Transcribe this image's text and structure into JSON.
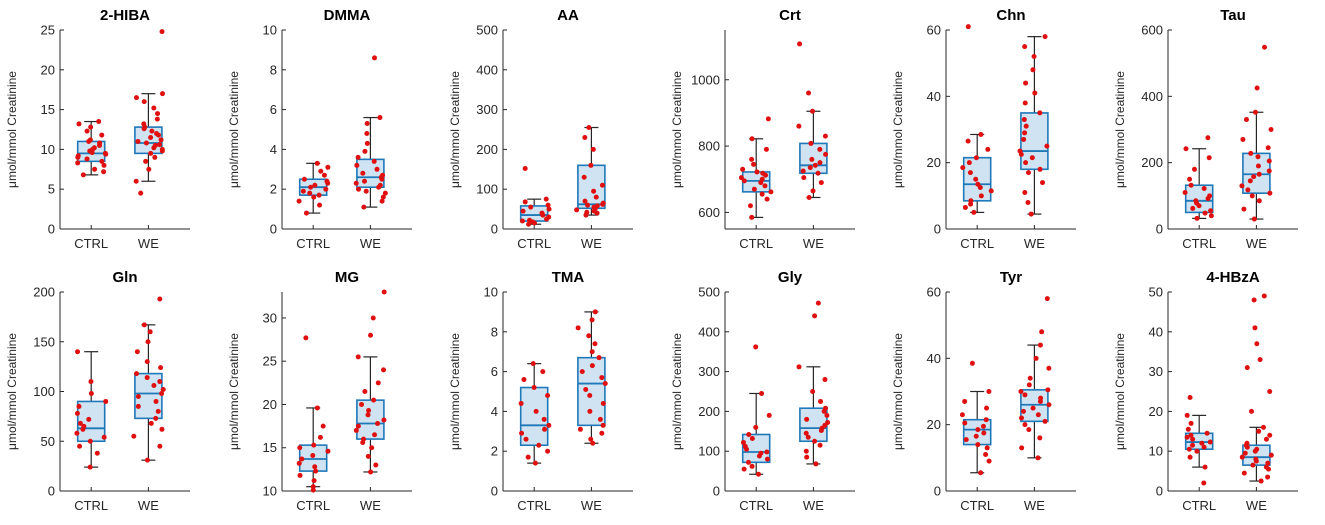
{
  "figure": {
    "ylabel": "μmol/mmol Creatinine",
    "groups": [
      "CTRL",
      "WE"
    ],
    "colors": {
      "box_fill": "#cfe3f3",
      "box_edge": "#1f78b8",
      "whisker": "#262626",
      "point": "#e01010",
      "axis": "#262626"
    }
  },
  "chart_data": [
    {
      "type": "box",
      "title": "2-HIBA",
      "ylabel": "μmol/mmol Creatinine",
      "categories": [
        "CTRL",
        "WE"
      ],
      "ylim": [
        0,
        25
      ],
      "yticks": [
        0,
        5,
        10,
        15,
        20,
        25
      ],
      "boxes": [
        {
          "min": 6.8,
          "q1": 8.5,
          "median": 9.5,
          "q3": 11.0,
          "max": 13.5
        },
        {
          "min": 6.0,
          "q1": 9.5,
          "median": 10.8,
          "q3": 12.8,
          "max": 17.0
        }
      ],
      "points": [
        [
          6.8,
          7.2,
          7.5,
          8.0,
          8.3,
          8.5,
          8.8,
          9.0,
          9.2,
          9.4,
          9.5,
          9.6,
          9.8,
          10.0,
          10.2,
          10.5,
          10.8,
          11.0,
          11.2,
          11.8,
          12.3,
          12.8,
          13.2,
          13.5
        ],
        [
          4.5,
          6.0,
          7.5,
          8.5,
          9.0,
          9.5,
          9.8,
          10.0,
          10.2,
          10.5,
          10.6,
          10.8,
          11.0,
          11.2,
          11.5,
          11.8,
          12.0,
          12.3,
          12.6,
          12.8,
          13.2,
          13.8,
          14.5,
          15.2,
          16.0,
          16.5,
          17.0,
          24.8
        ]
      ]
    },
    {
      "type": "box",
      "title": "DMMA",
      "ylabel": "μmol/mmol Creatinine",
      "categories": [
        "CTRL",
        "WE"
      ],
      "ylim": [
        0,
        10
      ],
      "yticks": [
        0,
        2,
        4,
        6,
        8,
        10
      ],
      "boxes": [
        {
          "min": 0.8,
          "q1": 1.7,
          "median": 2.1,
          "q3": 2.5,
          "max": 3.3
        },
        {
          "min": 1.1,
          "q1": 2.1,
          "median": 2.6,
          "q3": 3.5,
          "max": 5.6
        }
      ],
      "points": [
        [
          0.8,
          1.2,
          1.4,
          1.6,
          1.7,
          1.8,
          1.9,
          2.0,
          2.1,
          2.2,
          2.3,
          2.4,
          2.5,
          2.7,
          2.9,
          3.1,
          3.3
        ],
        [
          1.1,
          1.4,
          1.6,
          1.8,
          1.9,
          2.0,
          2.1,
          2.2,
          2.3,
          2.4,
          2.5,
          2.6,
          2.7,
          2.8,
          3.0,
          3.2,
          3.4,
          3.6,
          3.9,
          4.3,
          4.8,
          5.3,
          5.6,
          8.6
        ]
      ]
    },
    {
      "type": "box",
      "title": "AA",
      "ylabel": "μmol/mmol Creatinine",
      "categories": [
        "CTRL",
        "WE"
      ],
      "ylim": [
        0,
        500
      ],
      "yticks": [
        0,
        100,
        200,
        300,
        400,
        500
      ],
      "boxes": [
        {
          "min": 12,
          "q1": 20,
          "median": 35,
          "q3": 58,
          "max": 75
        },
        {
          "min": 35,
          "q1": 52,
          "median": 62,
          "q3": 160,
          "max": 255
        }
      ],
      "points": [
        [
          12,
          15,
          18,
          20,
          22,
          25,
          30,
          35,
          40,
          45,
          50,
          55,
          60,
          68,
          75,
          152
        ],
        [
          35,
          40,
          42,
          45,
          48,
          52,
          55,
          58,
          60,
          62,
          65,
          70,
          80,
          95,
          110,
          130,
          160,
          200,
          230,
          255
        ]
      ]
    },
    {
      "type": "box",
      "title": "Crt",
      "ylabel": "μmol/mmol Creatinine",
      "categories": [
        "CTRL",
        "WE"
      ],
      "ylim": [
        550,
        1150
      ],
      "yticks": [
        600,
        800,
        1000
      ],
      "boxes": [
        {
          "min": 585,
          "q1": 662,
          "median": 695,
          "q3": 722,
          "max": 822
        },
        {
          "min": 645,
          "q1": 718,
          "median": 742,
          "q3": 808,
          "max": 905
        }
      ],
      "points": [
        [
          585,
          620,
          640,
          655,
          662,
          670,
          680,
          690,
          695,
          700,
          705,
          712,
          718,
          722,
          730,
          745,
          760,
          790,
          822,
          882
        ],
        [
          645,
          665,
          690,
          705,
          718,
          725,
          735,
          742,
          750,
          760,
          775,
          790,
          808,
          830,
          860,
          905,
          960,
          1108
        ]
      ]
    },
    {
      "type": "box",
      "title": "Chn",
      "ylabel": "μmol/mmol Creatinine",
      "categories": [
        "CTRL",
        "WE"
      ],
      "ylim": [
        0,
        60
      ],
      "yticks": [
        0,
        20,
        40,
        60
      ],
      "boxes": [
        {
          "min": 5,
          "q1": 8.5,
          "median": 13.5,
          "q3": 21.5,
          "max": 28.5
        },
        {
          "min": 4.5,
          "q1": 18,
          "median": 23.5,
          "q3": 35,
          "max": 58
        }
      ],
      "points": [
        [
          5,
          6.5,
          7.5,
          8.5,
          10,
          11.5,
          12.5,
          13.5,
          15,
          17,
          18.5,
          20,
          21.5,
          24,
          26.5,
          28.5,
          61
        ],
        [
          4.5,
          8,
          11,
          14,
          17,
          18,
          20,
          21.5,
          22.5,
          23.5,
          25,
          27,
          29,
          31,
          33,
          35,
          38,
          41,
          44,
          48,
          52,
          55,
          58
        ]
      ]
    },
    {
      "type": "box",
      "title": "Tau",
      "ylabel": "μmol/mmol Creatinine",
      "categories": [
        "CTRL",
        "WE"
      ],
      "ylim": [
        0,
        600
      ],
      "yticks": [
        0,
        200,
        400,
        600
      ],
      "boxes": [
        {
          "min": 32,
          "q1": 50,
          "median": 85,
          "q3": 132,
          "max": 242
        },
        {
          "min": 30,
          "q1": 108,
          "median": 165,
          "q3": 228,
          "max": 352
        }
      ],
      "points": [
        [
          32,
          40,
          48,
          55,
          62,
          70,
          78,
          85,
          92,
          100,
          110,
          122,
          132,
          150,
          180,
          215,
          242,
          275
        ],
        [
          30,
          60,
          85,
          100,
          108,
          118,
          130,
          145,
          158,
          165,
          175,
          190,
          205,
          218,
          228,
          245,
          270,
          300,
          330,
          352,
          425,
          548
        ]
      ]
    },
    {
      "type": "box",
      "title": "Gln",
      "ylabel": "μmol/mmol Creatinine",
      "categories": [
        "CTRL",
        "WE"
      ],
      "ylim": [
        0,
        200
      ],
      "yticks": [
        0,
        50,
        100,
        150,
        200
      ],
      "boxes": [
        {
          "min": 24,
          "q1": 50,
          "median": 63,
          "q3": 90,
          "max": 140
        },
        {
          "min": 31,
          "q1": 73,
          "median": 98,
          "q3": 118,
          "max": 167
        }
      ],
      "points": [
        [
          24,
          38,
          45,
          50,
          54,
          58,
          62,
          65,
          68,
          72,
          78,
          85,
          90,
          98,
          110,
          140
        ],
        [
          31,
          45,
          55,
          62,
          68,
          73,
          80,
          85,
          90,
          95,
          98,
          102,
          106,
          110,
          114,
          118,
          124,
          130,
          140,
          150,
          160,
          167,
          193
        ]
      ]
    },
    {
      "type": "box",
      "title": "MG",
      "ylabel": "μmol/mmol Creatinine",
      "categories": [
        "CTRL",
        "WE"
      ],
      "ylim": [
        10,
        33
      ],
      "yticks": [
        10,
        15,
        20,
        25,
        30
      ],
      "boxes": [
        {
          "min": 10.5,
          "q1": 12.3,
          "median": 13.7,
          "q3": 15.3,
          "max": 19.6
        },
        {
          "min": 12.2,
          "q1": 16,
          "median": 17.8,
          "q3": 20.5,
          "max": 25.5
        }
      ],
      "points": [
        [
          10.1,
          10.5,
          11.2,
          11.8,
          12.3,
          12.8,
          13.2,
          13.7,
          14.1,
          14.6,
          15,
          15.3,
          16.2,
          17.5,
          19.6,
          27.7
        ],
        [
          12.2,
          13,
          14,
          15,
          15.6,
          16,
          16.5,
          17,
          17.5,
          17.8,
          18.2,
          18.8,
          19.3,
          20,
          20.5,
          21.5,
          22.5,
          24,
          25.5,
          28,
          30,
          33
        ]
      ]
    },
    {
      "type": "box",
      "title": "TMA",
      "ylabel": "μmol/mmol Creatinine",
      "categories": [
        "CTRL",
        "WE"
      ],
      "ylim": [
        0,
        10
      ],
      "yticks": [
        0,
        2,
        4,
        6,
        8,
        10
      ],
      "boxes": [
        {
          "min": 1.4,
          "q1": 2.3,
          "median": 3.3,
          "q3": 5.2,
          "max": 6.4
        },
        {
          "min": 2.4,
          "q1": 3.3,
          "median": 5.4,
          "q3": 6.7,
          "max": 9.0
        }
      ],
      "points": [
        [
          1.4,
          1.7,
          2.0,
          2.3,
          2.6,
          2.9,
          3.1,
          3.3,
          3.6,
          4.0,
          4.4,
          4.8,
          5.2,
          5.6,
          6.0,
          6.4
        ],
        [
          2.4,
          2.6,
          2.9,
          3.1,
          3.3,
          3.6,
          4.0,
          4.4,
          4.8,
          5.1,
          5.4,
          5.7,
          6.0,
          6.3,
          6.7,
          7.0,
          7.4,
          7.8,
          8.2,
          8.6,
          9.0
        ]
      ]
    },
    {
      "type": "box",
      "title": "Gly",
      "ylabel": "μmol/mmol Creatinine",
      "categories": [
        "CTRL",
        "WE"
      ],
      "ylim": [
        0,
        500
      ],
      "yticks": [
        0,
        100,
        200,
        300,
        400,
        500
      ],
      "boxes": [
        {
          "min": 42,
          "q1": 72,
          "median": 98,
          "q3": 142,
          "max": 245
        },
        {
          "min": 68,
          "q1": 125,
          "median": 158,
          "q3": 208,
          "max": 312
        }
      ],
      "points": [
        [
          42,
          55,
          62,
          72,
          80,
          88,
          95,
          98,
          105,
          112,
          122,
          132,
          142,
          160,
          190,
          245,
          362
        ],
        [
          68,
          85,
          100,
          115,
          125,
          135,
          145,
          152,
          158,
          165,
          172,
          180,
          190,
          200,
          208,
          225,
          250,
          280,
          312,
          440,
          472
        ]
      ]
    },
    {
      "type": "box",
      "title": "Tyr",
      "ylabel": "μmol/mmol Creatinine",
      "categories": [
        "CTRL",
        "WE"
      ],
      "ylim": [
        0,
        60
      ],
      "yticks": [
        0,
        20,
        40,
        60
      ],
      "boxes": [
        {
          "min": 5.5,
          "q1": 14,
          "median": 18.5,
          "q3": 21.5,
          "max": 30
        },
        {
          "min": 10,
          "q1": 21,
          "median": 26,
          "q3": 30.5,
          "max": 44
        }
      ],
      "points": [
        [
          5.5,
          9,
          11,
          13,
          14,
          15.5,
          16.5,
          17.5,
          18.5,
          19.5,
          20.5,
          21.5,
          23,
          25,
          27,
          30,
          38.5
        ],
        [
          10,
          13,
          16,
          18.5,
          20,
          21,
          22,
          23,
          24,
          25,
          26,
          27,
          28,
          29,
          30,
          30.5,
          32,
          34,
          37,
          40,
          44,
          48,
          58
        ]
      ]
    },
    {
      "type": "box",
      "title": "4-HBzA",
      "ylabel": "μmol/mmol Creatinine",
      "categories": [
        "CTRL",
        "WE"
      ],
      "ylim": [
        0,
        50
      ],
      "yticks": [
        0,
        10,
        20,
        30,
        40,
        50
      ],
      "boxes": [
        {
          "min": 6,
          "q1": 10.5,
          "median": 12.3,
          "q3": 14.5,
          "max": 19
        },
        {
          "min": 2.5,
          "q1": 6.5,
          "median": 8.5,
          "q3": 11.5,
          "max": 16
        }
      ],
      "points": [
        [
          2,
          6,
          8.5,
          10,
          10.5,
          11,
          11.5,
          12,
          12.3,
          13,
          13.5,
          14,
          14.5,
          15.5,
          17,
          19,
          23.5
        ],
        [
          2.5,
          3.5,
          4.5,
          5.5,
          6,
          6.5,
          7,
          7.5,
          8,
          8.5,
          9,
          9.5,
          10,
          10.5,
          11,
          11.5,
          12,
          13,
          14,
          15,
          16,
          20,
          25,
          31,
          33,
          37,
          41,
          48,
          49
        ]
      ]
    }
  ]
}
